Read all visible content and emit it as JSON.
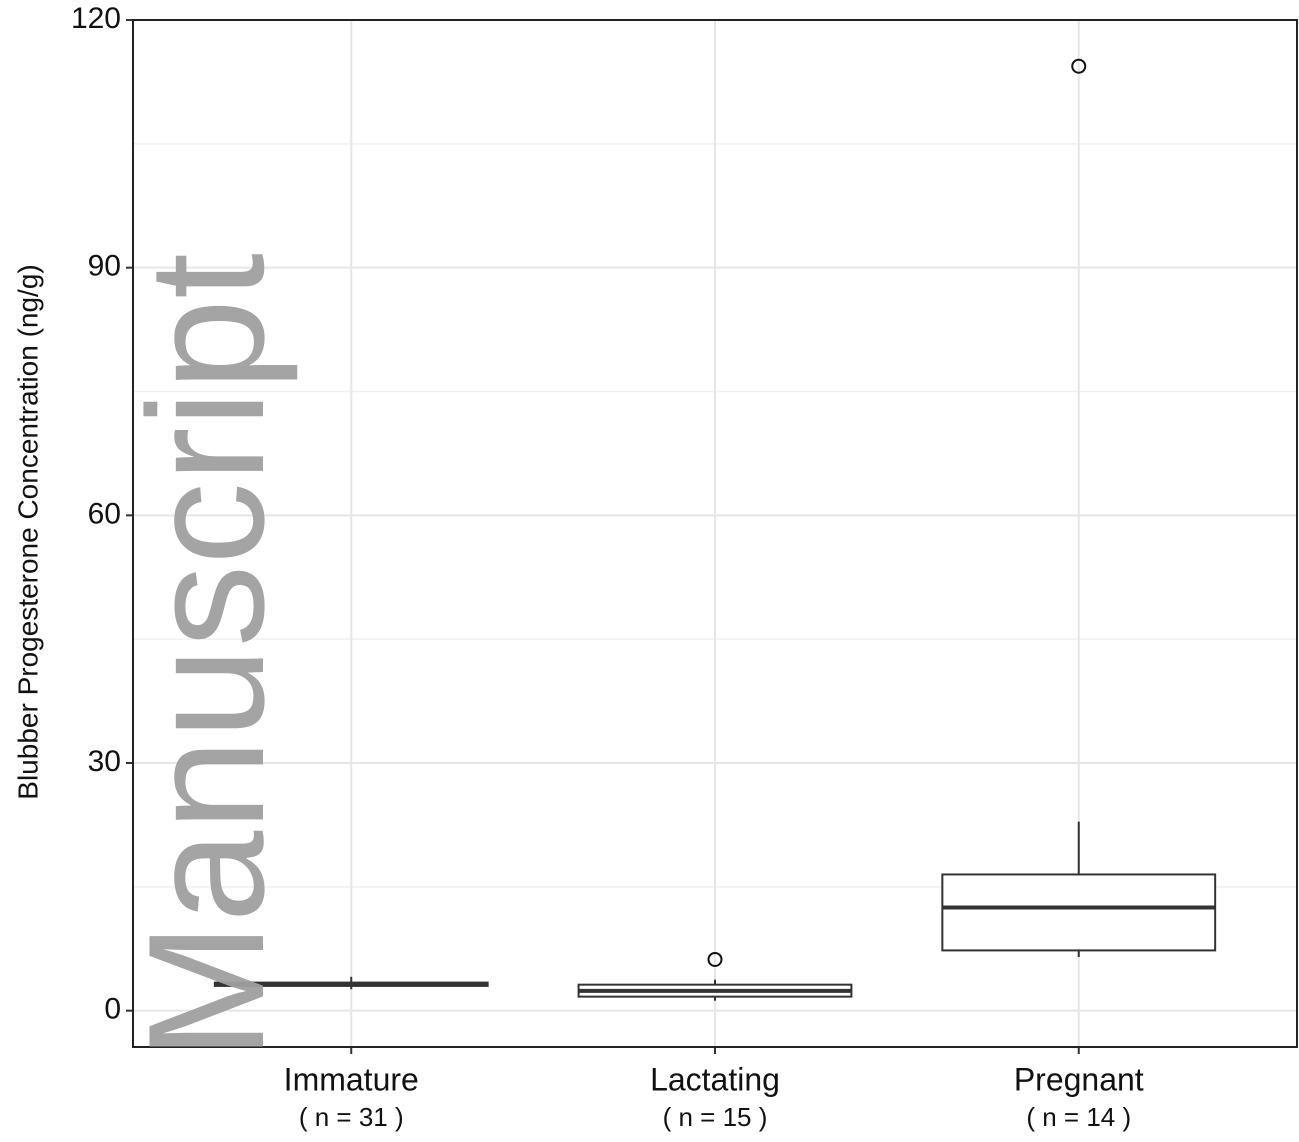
{
  "chart_data": {
    "type": "box",
    "y_label": "Blubber Progesterone Concentration (ng/g)",
    "categories": [
      "Immature",
      "Lactating",
      "Pregnant"
    ],
    "sublabels": [
      "( n = 31 )",
      "( n = 15 )",
      "( n = 14 )"
    ],
    "boxes": [
      {
        "min": 2.6,
        "q1": 3.0,
        "median": 3.2,
        "q3": 3.4,
        "max": 4.1,
        "outliers": []
      },
      {
        "min": 1.2,
        "q1": 1.7,
        "median": 2.4,
        "q3": 3.15,
        "max": 3.75,
        "outliers": [
          6.2
        ]
      },
      {
        "min": 6.5,
        "q1": 7.3,
        "median": 12.5,
        "q3": 16.5,
        "max": 22.9,
        "outliers": [
          114.4
        ]
      }
    ],
    "box_color": "#333333",
    "box_fill": "#ffffff",
    "ylim": [
      -4.4,
      120
    ],
    "yticks": [
      0,
      30,
      60,
      90,
      120
    ],
    "minor_yticks": [
      15,
      45,
      75,
      105
    ],
    "grid": true,
    "watermark": "Manuscript"
  }
}
